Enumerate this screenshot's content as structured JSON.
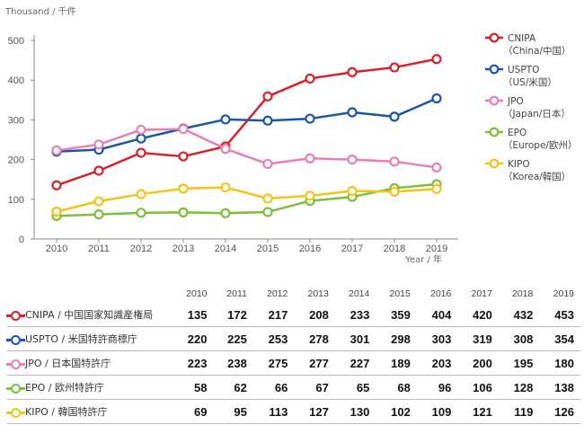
{
  "unit_label": "Thousand / 千件",
  "xaxis_label": "Year / 年",
  "colors": {
    "CNIPA": "#d8202a",
    "USPTO": "#1b56a6",
    "JPO": "#e77fb6",
    "EPO": "#7ebf3a",
    "KIPO": "#f0c419"
  },
  "chart_data": {
    "type": "line",
    "categories": [
      "2010",
      "2011",
      "2012",
      "2013",
      "2014",
      "2015",
      "2016",
      "2017",
      "2018",
      "2019"
    ],
    "ylim": [
      0,
      500
    ],
    "yticks": [
      0,
      100,
      200,
      300,
      400,
      500
    ],
    "grid": false,
    "legend_position": "right",
    "series": [
      {
        "key": "CNIPA",
        "legend": [
          "CNIPA",
          "（China/中国）"
        ],
        "name": "CNIPA / 中国国家知識産権局",
        "values": [
          135,
          172,
          217,
          208,
          233,
          359,
          404,
          420,
          432,
          453
        ]
      },
      {
        "key": "USPTO",
        "legend": [
          "USPTO",
          "（US/米国）"
        ],
        "name": "USPTO / 米国特許商標庁",
        "values": [
          220,
          225,
          253,
          278,
          301,
          298,
          303,
          319,
          308,
          354
        ]
      },
      {
        "key": "JPO",
        "legend": [
          "JPO",
          "（Japan/日本）"
        ],
        "name": "JPO / 日本国特許庁",
        "values": [
          223,
          238,
          275,
          277,
          227,
          189,
          203,
          200,
          195,
          180
        ]
      },
      {
        "key": "EPO",
        "legend": [
          "EPO",
          "（Europe/欧州）"
        ],
        "name": "EPO / 欧州特許庁",
        "values": [
          58,
          62,
          66,
          67,
          65,
          68,
          96,
          106,
          128,
          138
        ]
      },
      {
        "key": "KIPO",
        "legend": [
          "KIPO",
          "（Korea/韓国）"
        ],
        "name": "KIPO / 韓国特許庁",
        "values": [
          69,
          95,
          113,
          127,
          130,
          102,
          109,
          121,
          119,
          126
        ]
      }
    ]
  }
}
